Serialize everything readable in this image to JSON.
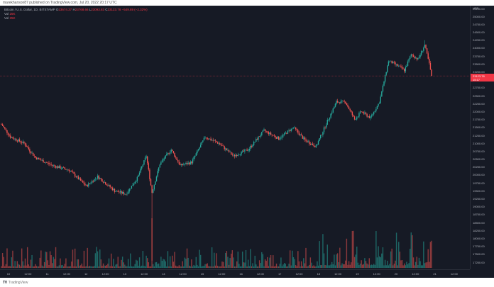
{
  "header": {
    "published_line": "marekhanson87 published on TradingView.com, Jul 20, 2022 20:17 UTC"
  },
  "legend": {
    "symbol": "Bitcoin / U.S. Dollar, 1D, BITSTAMP",
    "open_label": "O",
    "open": "23674.37",
    "high_label": "H",
    "high": "23768.66",
    "low_label": "L",
    "low": "23093.83",
    "close_label": "C",
    "close": "23123.78",
    "change": "−549.89 (−2.32%)",
    "vol1_label": "Vol",
    "vol1_value": "25K",
    "vol2_label": "Vol",
    "vol2_value": "25K"
  },
  "colors": {
    "background": "#161a25",
    "up": "#26a69a",
    "down": "#ef5350",
    "grid": "#1e222d",
    "axis_text": "#b2b5be",
    "price_line": "#f23645"
  },
  "price_axis": {
    "currency": "USD",
    "labels": [
      "25250.00",
      "25000.00",
      "24750.00",
      "24500.00",
      "24250.00",
      "24000.00",
      "23750.00",
      "23500.00",
      "23250.00",
      "22750.00",
      "22500.00",
      "22250.00",
      "22000.00",
      "21750.00",
      "21500.00",
      "21250.00",
      "21000.00",
      "20750.00",
      "20500.00",
      "20250.00",
      "20000.00",
      "19750.00",
      "19500.00",
      "19250.00",
      "19000.00",
      "18750.00",
      "18500.00",
      "18250.00",
      "18000.00",
      "17750.00",
      "17500.00",
      "17250.00"
    ],
    "current_price": "23123.78",
    "countdown": "15:17"
  },
  "time_axis": {
    "labels": [
      "10",
      "12:00",
      "11",
      "12:00",
      "12",
      "12:00",
      "13",
      "12:00",
      "14",
      "12:00",
      "15",
      "12:00",
      "16",
      "12:00",
      "17",
      "12:00",
      "18",
      "12:00",
      "19",
      "12:00",
      "20",
      "12:00",
      "21",
      "12:00"
    ]
  },
  "footer": {
    "logo_glyph": "TV",
    "brand": "TradingView"
  },
  "chart_data": {
    "type": "candlestick",
    "title": "Bitcoin / U.S. Dollar, 1D, BITSTAMP",
    "xlabel": "",
    "ylabel": "USD",
    "ylim": [
      17250,
      25250
    ],
    "grid": false,
    "legend_position": "top-left",
    "x_tick_labels": [
      "10",
      "12:00",
      "11",
      "12:00",
      "12",
      "12:00",
      "13",
      "12:00",
      "14",
      "12:00",
      "15",
      "12:00",
      "16",
      "12:00",
      "17",
      "12:00",
      "18",
      "12:00",
      "19",
      "12:00",
      "20",
      "12:00",
      "21",
      "12:00"
    ],
    "price_path_keypoints": [
      {
        "t": 0,
        "price": 21600
      },
      {
        "t": 8,
        "price": 21200
      },
      {
        "t": 20,
        "price": 21000
      },
      {
        "t": 30,
        "price": 20550
      },
      {
        "t": 45,
        "price": 20300
      },
      {
        "t": 60,
        "price": 20150
      },
      {
        "t": 75,
        "price": 19650
      },
      {
        "t": 85,
        "price": 19950
      },
      {
        "t": 100,
        "price": 19500
      },
      {
        "t": 110,
        "price": 19400
      },
      {
        "t": 120,
        "price": 19900
      },
      {
        "t": 128,
        "price": 20600
      },
      {
        "t": 133,
        "price": 19450
      },
      {
        "t": 140,
        "price": 20350
      },
      {
        "t": 150,
        "price": 20800
      },
      {
        "t": 158,
        "price": 20300
      },
      {
        "t": 168,
        "price": 20400
      },
      {
        "t": 180,
        "price": 21200
      },
      {
        "t": 192,
        "price": 21000
      },
      {
        "t": 205,
        "price": 20600
      },
      {
        "t": 218,
        "price": 20800
      },
      {
        "t": 232,
        "price": 21400
      },
      {
        "t": 245,
        "price": 21150
      },
      {
        "t": 258,
        "price": 21500
      },
      {
        "t": 268,
        "price": 21100
      },
      {
        "t": 278,
        "price": 20900
      },
      {
        "t": 288,
        "price": 21700
      },
      {
        "t": 296,
        "price": 22300
      },
      {
        "t": 304,
        "price": 22300
      },
      {
        "t": 312,
        "price": 21750
      },
      {
        "t": 318,
        "price": 22000
      },
      {
        "t": 326,
        "price": 21800
      },
      {
        "t": 334,
        "price": 22300
      },
      {
        "t": 342,
        "price": 23600
      },
      {
        "t": 350,
        "price": 23450
      },
      {
        "t": 356,
        "price": 23300
      },
      {
        "t": 362,
        "price": 23800
      },
      {
        "t": 368,
        "price": 23650
      },
      {
        "t": 374,
        "price": 24100
      },
      {
        "t": 378,
        "price": 23500
      },
      {
        "t": 380,
        "price": 23123.78
      }
    ],
    "notable": {
      "spike_low_wick": {
        "t": 133,
        "low": 17300
      },
      "peak": {
        "t": 374,
        "high": 24250
      }
    },
    "volume_series_name": "Vol",
    "last_volume": "25K"
  }
}
